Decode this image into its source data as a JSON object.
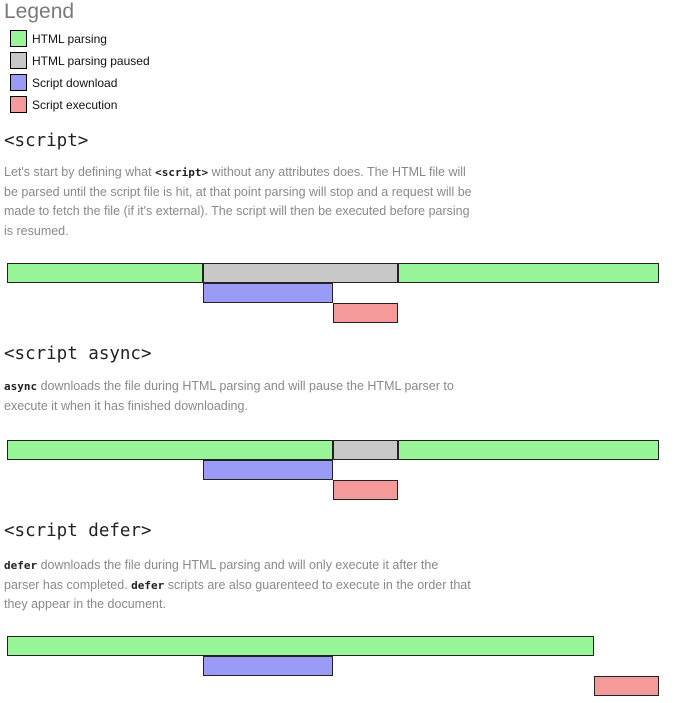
{
  "legend": {
    "title": "Legend",
    "items": [
      {
        "key": "parsing",
        "label": "HTML parsing",
        "color": "#98f598"
      },
      {
        "key": "paused",
        "label": "HTML parsing paused",
        "color": "#c8c8c8"
      },
      {
        "key": "download",
        "label": "Script download",
        "color": "#9a9af7"
      },
      {
        "key": "execution",
        "label": "Script execution",
        "color": "#f59a9a"
      }
    ]
  },
  "sections": [
    {
      "title": "<script>",
      "description": [
        {
          "text": "Let's start by defining what "
        },
        {
          "code": "<script>"
        },
        {
          "text": " without any attributes does. The HTML file will be parsed until the script file is hit, at that point parsing will stop and a request will be made to fetch the file (if it's external). The script will then be executed before parsing is resumed."
        }
      ]
    },
    {
      "title": "<script async>",
      "description": [
        {
          "code": "async"
        },
        {
          "text": " downloads the file during HTML parsing and will pause the HTML parser to execute it when it has finished downloading."
        }
      ]
    },
    {
      "title": "<script defer>",
      "description": [
        {
          "code": "defer"
        },
        {
          "text": " downloads the file during HTML parsing and will only execute it after the parser has completed. "
        },
        {
          "code": "defer"
        },
        {
          "text": " scripts are also guarenteed to execute in the order that they appear in the document."
        }
      ]
    }
  ],
  "timelines": [
    {
      "name": "script",
      "segments": [
        {
          "kind": "parsing",
          "lane": 0,
          "start": 0,
          "end": 30
        },
        {
          "kind": "paused",
          "lane": 0,
          "start": 30,
          "end": 60
        },
        {
          "kind": "parsing",
          "lane": 0,
          "start": 60,
          "end": 100
        },
        {
          "kind": "download",
          "lane": 1,
          "start": 30,
          "end": 50
        },
        {
          "kind": "execution",
          "lane": 2,
          "start": 50,
          "end": 60
        }
      ]
    },
    {
      "name": "async",
      "segments": [
        {
          "kind": "parsing",
          "lane": 0,
          "start": 0,
          "end": 50
        },
        {
          "kind": "paused",
          "lane": 0,
          "start": 50,
          "end": 60
        },
        {
          "kind": "parsing",
          "lane": 0,
          "start": 60,
          "end": 100
        },
        {
          "kind": "download",
          "lane": 1,
          "start": 30,
          "end": 50
        },
        {
          "kind": "execution",
          "lane": 2,
          "start": 50,
          "end": 60
        }
      ]
    },
    {
      "name": "defer",
      "segments": [
        {
          "kind": "parsing",
          "lane": 0,
          "start": 0,
          "end": 90
        },
        {
          "kind": "download",
          "lane": 1,
          "start": 30,
          "end": 50
        },
        {
          "kind": "execution",
          "lane": 2,
          "start": 90,
          "end": 100
        }
      ]
    }
  ]
}
